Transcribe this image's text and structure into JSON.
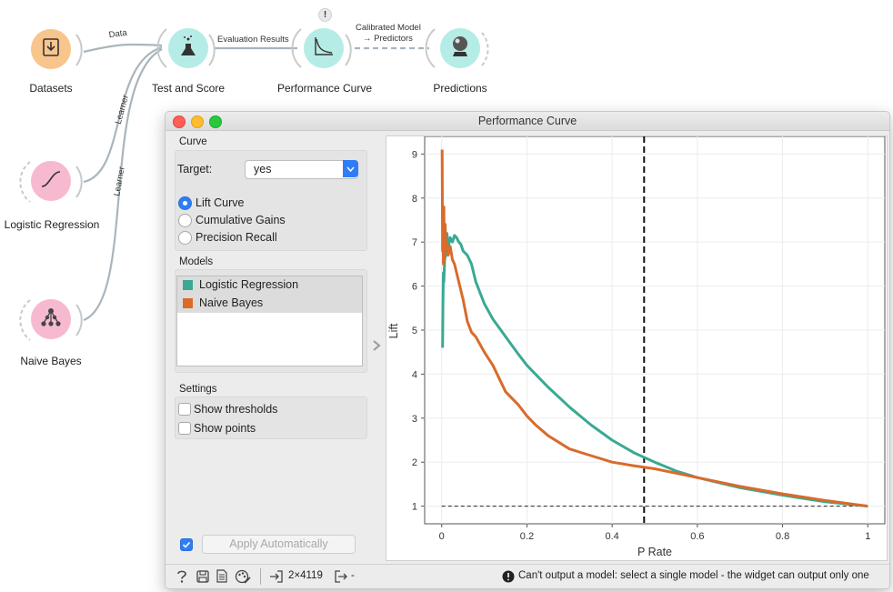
{
  "workflow": {
    "nodes": [
      {
        "name": "Datasets",
        "color": "#f8c58d"
      },
      {
        "name": "Test and Score",
        "color": "#b6ece6"
      },
      {
        "name": "Performance Curve",
        "color": "#b6ece6"
      },
      {
        "name": "Predictions",
        "color": "#b6ece6"
      },
      {
        "name": "Logistic Regression",
        "color": "#f7b9cf"
      },
      {
        "name": "Naive Bayes",
        "color": "#f7b9cf"
      }
    ],
    "links": {
      "data": "Data",
      "evaluation_results": "Evaluation Results",
      "calibrated_model_line1": "Calibrated Model",
      "calibrated_model_line2": "→ Predictors",
      "learner_1": "Learner",
      "learner_2": "Learner"
    },
    "warning_badge": "!"
  },
  "window": {
    "title": "Performance Curve",
    "curve_section": "Curve",
    "target_label": "Target:",
    "target_value": "yes",
    "curve_options": [
      "Lift Curve",
      "Cumulative Gains",
      "Precision Recall"
    ],
    "selected_curve": "Lift Curve",
    "models_section": "Models",
    "models": [
      {
        "name": "Logistic Regression",
        "color": "#3aa993"
      },
      {
        "name": "Naive Bayes",
        "color": "#d96b2b"
      }
    ],
    "settings_section": "Settings",
    "settings": [
      {
        "label": "Show thresholds",
        "checked": false
      },
      {
        "label": "Show points",
        "checked": false
      }
    ],
    "apply_checked": true,
    "apply_label": "Apply Automatically",
    "status": {
      "data_size": "2×4119",
      "output": "-",
      "message": "Can't output a model: select a single model - the widget can output only one"
    }
  },
  "chart_data": {
    "type": "line",
    "xlabel": "P Rate",
    "ylabel": "Lift",
    "xlim": [
      -0.04,
      1.04
    ],
    "ylim": [
      0.6,
      9.4
    ],
    "xticks": [
      0,
      0.2,
      0.4,
      0.6,
      0.8,
      1
    ],
    "xtick_labels": [
      "0",
      "0.2",
      "0.4",
      "0.6",
      "0.8",
      "1"
    ],
    "yticks": [
      1,
      2,
      3,
      4,
      5,
      6,
      7,
      8,
      9
    ],
    "grid": true,
    "threshold_x": 0.475,
    "baseline": 1,
    "series": [
      {
        "name": "Logistic Regression",
        "color": "#3aa993",
        "x": [
          0.002,
          0.003,
          0.004,
          0.005,
          0.007,
          0.009,
          0.012,
          0.016,
          0.02,
          0.025,
          0.03,
          0.035,
          0.04,
          0.045,
          0.05,
          0.06,
          0.07,
          0.08,
          0.1,
          0.12,
          0.15,
          0.18,
          0.2,
          0.22,
          0.25,
          0.3,
          0.35,
          0.4,
          0.45,
          0.5,
          0.55,
          0.6,
          0.7,
          0.8,
          0.9,
          1.0
        ],
        "y": [
          4.6,
          5.6,
          6.3,
          6.1,
          6.6,
          6.7,
          7.2,
          6.9,
          7.1,
          7.0,
          7.15,
          7.1,
          7.0,
          6.95,
          6.8,
          6.7,
          6.5,
          6.1,
          5.6,
          5.25,
          4.85,
          4.45,
          4.2,
          4.0,
          3.7,
          3.25,
          2.85,
          2.5,
          2.22,
          2.0,
          1.8,
          1.65,
          1.42,
          1.25,
          1.1,
          1.0
        ]
      },
      {
        "name": "Naive Bayes",
        "color": "#d96b2b",
        "x": [
          0.001,
          0.002,
          0.003,
          0.004,
          0.005,
          0.006,
          0.008,
          0.01,
          0.012,
          0.015,
          0.02,
          0.025,
          0.03,
          0.04,
          0.05,
          0.06,
          0.07,
          0.08,
          0.1,
          0.12,
          0.15,
          0.18,
          0.2,
          0.22,
          0.25,
          0.3,
          0.35,
          0.4,
          0.45,
          0.5,
          0.55,
          0.6,
          0.7,
          0.8,
          0.9,
          1.0
        ],
        "y": [
          9.1,
          6.8,
          7.7,
          6.5,
          7.8,
          6.6,
          7.4,
          6.8,
          7.0,
          6.7,
          6.9,
          6.6,
          6.5,
          6.1,
          5.7,
          5.2,
          4.95,
          4.85,
          4.5,
          4.2,
          3.6,
          3.3,
          3.05,
          2.85,
          2.6,
          2.3,
          2.15,
          2.0,
          1.92,
          1.85,
          1.75,
          1.65,
          1.45,
          1.28,
          1.13,
          1.0
        ]
      }
    ]
  }
}
